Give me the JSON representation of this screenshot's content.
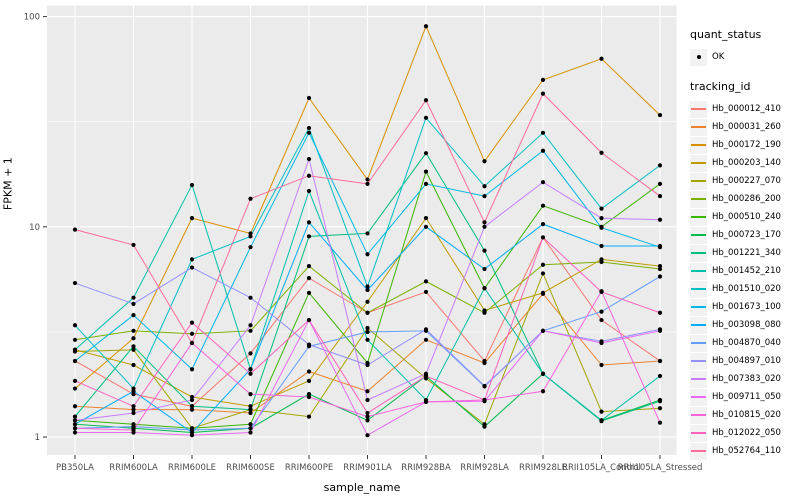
{
  "chart_data": {
    "type": "line",
    "title": "",
    "xlabel": "sample_name",
    "ylabel": "FPKM + 1",
    "x_categories": [
      "PB350LA",
      "RRIM600LA",
      "RRIM600LE",
      "RRIM600SE",
      "RRIM600PE",
      "RRIM901LA",
      "RRIM928BA",
      "RRIM928LA",
      "RRIM928LE",
      "RRII105LA_Control",
      "RRII105LA_Stressed"
    ],
    "y_scale": "log10",
    "y_ticks": [
      1,
      10,
      100
    ],
    "y_tick_labels": [
      "1",
      "10",
      "100"
    ],
    "y_minor_breaks": [
      3.162,
      31.62
    ],
    "ylim": [
      1,
      110
    ],
    "grid": true,
    "legend_position": "right",
    "panel_background": "#EBEBEB",
    "gridline_color": "#FFFFFF",
    "point_color": "#000000",
    "series": [
      {
        "name": "Hb_000012_410",
        "color": "#F8766D",
        "values": [
          2.3,
          1.6,
          1.4,
          2.5,
          5.7,
          3.9,
          4.9,
          2.3,
          8.9,
          3.6,
          2.3
        ]
      },
      {
        "name": "Hb_000031_260",
        "color": "#EA8331",
        "values": [
          1.4,
          1.35,
          1.35,
          1.3,
          2.05,
          1.65,
          2.9,
          2.25,
          4.8,
          2.2,
          2.3
        ]
      },
      {
        "name": "Hb_000172_190",
        "color": "#D89000",
        "values": [
          1.7,
          2.95,
          11.0,
          9.3,
          41.0,
          16.8,
          90.0,
          20.5,
          50.0,
          63.0,
          34.0
        ]
      },
      {
        "name": "Hb_000203_140",
        "color": "#C09B00",
        "values": [
          2.6,
          2.2,
          1.55,
          1.4,
          1.85,
          4.4,
          11.0,
          4.0,
          4.85,
          7.0,
          6.5
        ]
      },
      {
        "name": "Hb_000227_070",
        "color": "#A3A500",
        "values": [
          2.55,
          2.6,
          1.1,
          1.35,
          1.25,
          3.3,
          1.9,
          1.15,
          6.0,
          1.32,
          1.37
        ]
      },
      {
        "name": "Hb_000286_200",
        "color": "#7CAE00",
        "values": [
          2.9,
          3.2,
          3.1,
          3.2,
          6.5,
          3.9,
          5.5,
          3.9,
          6.6,
          6.8,
          6.3
        ]
      },
      {
        "name": "Hb_000510_240",
        "color": "#39B600",
        "values": [
          1.2,
          1.15,
          1.1,
          1.15,
          4.85,
          2.25,
          18.3,
          5.1,
          12.6,
          10.0,
          16.0
        ]
      },
      {
        "name": "Hb_000723_170",
        "color": "#00BB4E",
        "values": [
          1.15,
          1.1,
          1.05,
          1.1,
          1.6,
          1.2,
          1.95,
          1.12,
          2.0,
          1.2,
          1.5
        ]
      },
      {
        "name": "Hb_001221_340",
        "color": "#00BF7D",
        "values": [
          1.25,
          2.7,
          1.4,
          1.35,
          9.0,
          9.3,
          22.4,
          7.7,
          2.0,
          1.19,
          1.48
        ]
      },
      {
        "name": "Hb_001452_210",
        "color": "#00C1A9",
        "values": [
          2.6,
          4.6,
          15.8,
          2.1,
          14.8,
          2.9,
          1.5,
          5.1,
          2.0,
          1.2,
          1.95
        ]
      },
      {
        "name": "Hb_001510_020",
        "color": "#00BFC4",
        "values": [
          3.4,
          1.7,
          7.0,
          9.0,
          29.5,
          5.2,
          33.0,
          15.6,
          28.0,
          12.2,
          19.6
        ]
      },
      {
        "name": "Hb_001673_100",
        "color": "#00B8E5",
        "values": [
          2.3,
          3.8,
          2.1,
          8.0,
          28.0,
          7.4,
          16.0,
          14.0,
          23.0,
          9.9,
          8.0
        ]
      },
      {
        "name": "Hb_003098_080",
        "color": "#00ACFC",
        "values": [
          1.15,
          1.65,
          1.05,
          2.1,
          10.5,
          5.0,
          10.0,
          6.3,
          10.3,
          8.1,
          8.1
        ]
      },
      {
        "name": "Hb_004870_040",
        "color": "#619CFF",
        "values": [
          1.1,
          1.12,
          1.08,
          1.1,
          2.7,
          3.16,
          3.2,
          1.74,
          3.2,
          3.95,
          5.8
        ]
      },
      {
        "name": "Hb_004897_010",
        "color": "#9590FF",
        "values": [
          5.4,
          4.3,
          6.4,
          4.6,
          2.75,
          2.2,
          3.25,
          1.75,
          3.2,
          2.85,
          3.25
        ]
      },
      {
        "name": "Hb_007383_020",
        "color": "#C77CFF",
        "values": [
          1.2,
          1.3,
          1.5,
          3.4,
          21.0,
          1.5,
          2.0,
          10.0,
          16.3,
          11.0,
          10.8
        ]
      },
      {
        "name": "Hb_009711_050",
        "color": "#E76BF3",
        "values": [
          1.05,
          1.05,
          1.02,
          1.05,
          3.6,
          1.02,
          1.47,
          1.48,
          3.2,
          2.8,
          3.2
        ]
      },
      {
        "name": "Hb_010815_020",
        "color": "#FA62DB",
        "values": [
          1.1,
          1.08,
          2.8,
          1.6,
          1.55,
          1.25,
          1.47,
          1.5,
          1.65,
          4.94,
          1.17
        ]
      },
      {
        "name": "Hb_012022_050",
        "color": "#FF62BC",
        "values": [
          1.85,
          1.4,
          3.5,
          2.0,
          3.6,
          1.3,
          1.95,
          1.5,
          8.9,
          4.9,
          3.9
        ]
      },
      {
        "name": "Hb_052764_110",
        "color": "#FF6A98",
        "values": [
          9.7,
          8.2,
          2.8,
          13.6,
          17.5,
          16.0,
          40.0,
          10.5,
          43.0,
          22.5,
          14.0
        ]
      }
    ]
  },
  "axes": {
    "x_title": "sample_name",
    "y_title": "FPKM + 1",
    "tick_label_color": "#4D4D4D"
  },
  "legend": {
    "quant_status_title": "quant_status",
    "quant_status_items": [
      {
        "label": "OK",
        "symbol": "point"
      }
    ],
    "tracking_title": "tracking_id"
  }
}
